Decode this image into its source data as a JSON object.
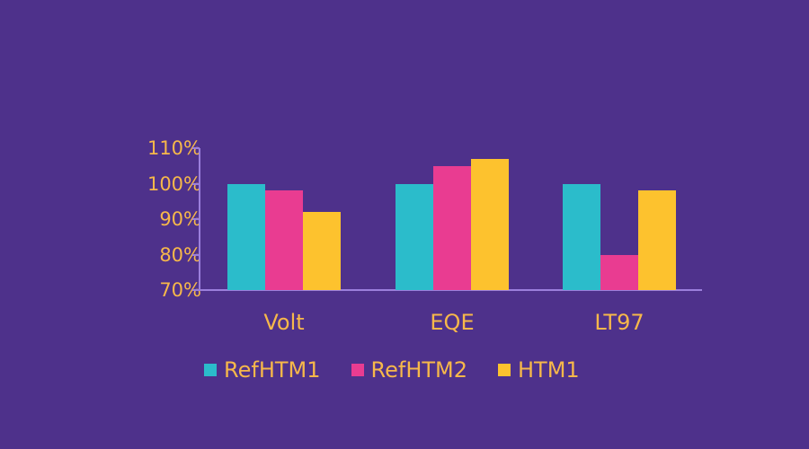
{
  "chart_data": {
    "type": "bar",
    "title": "",
    "xlabel": "",
    "ylabel": "",
    "categories": [
      "Volt",
      "EQE",
      "LT97"
    ],
    "series": [
      {
        "name": "RefHTM1",
        "color": "#2bbccb",
        "values": [
          100,
          100,
          100
        ]
      },
      {
        "name": "RefHTM2",
        "color": "#e93c91",
        "values": [
          98,
          105,
          80
        ]
      },
      {
        "name": "HTM1",
        "color": "#fdc22e",
        "values": [
          92,
          107,
          98
        ]
      }
    ],
    "ylim": [
      70,
      110
    ],
    "yticks": [
      "110%",
      "100%",
      "90%",
      "80%",
      "70%"
    ],
    "grid": false,
    "legend_position": "bottom"
  },
  "colors": {
    "background": "#4e318b",
    "text": "#f7b84a",
    "axis": "#9b7fdc"
  }
}
